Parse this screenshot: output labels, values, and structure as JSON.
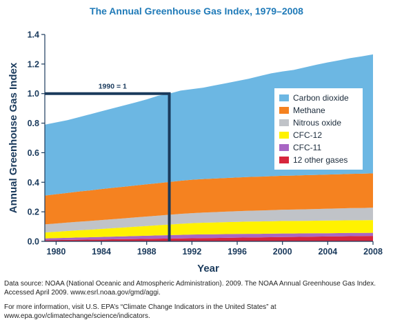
{
  "chart_data": {
    "type": "area",
    "title": "The Annual Greenhouse Gas Index, 1979–2008",
    "xlabel": "Year",
    "ylabel": "Annual Greenhouse Gas Index",
    "xlim": [
      1979,
      2008
    ],
    "ylim": [
      0,
      1.4
    ],
    "x_ticks": [
      "1980",
      "1984",
      "1988",
      "1992",
      "1996",
      "2000",
      "2004",
      "2008"
    ],
    "y_ticks": [
      "0.0",
      "0.2",
      "0.4",
      "0.6",
      "0.8",
      "1.0",
      "1.2",
      "1.4"
    ],
    "stacked": true,
    "x": [
      1979,
      1980,
      1981,
      1982,
      1983,
      1984,
      1985,
      1986,
      1987,
      1988,
      1989,
      1990,
      1991,
      1992,
      1993,
      1994,
      1995,
      1996,
      1997,
      1998,
      1999,
      2000,
      2001,
      2002,
      2003,
      2004,
      2005,
      2006,
      2007,
      2008
    ],
    "series": [
      {
        "name": "12 other gases",
        "color": "#d7263d",
        "values": [
          0.008,
          0.009,
          0.01,
          0.011,
          0.012,
          0.013,
          0.014,
          0.015,
          0.016,
          0.017,
          0.018,
          0.019,
          0.02,
          0.021,
          0.022,
          0.023,
          0.024,
          0.025,
          0.026,
          0.027,
          0.028,
          0.029,
          0.03,
          0.031,
          0.032,
          0.033,
          0.034,
          0.035,
          0.036,
          0.037
        ]
      },
      {
        "name": "CFC-11",
        "color": "#a866c4",
        "values": [
          0.012,
          0.013,
          0.014,
          0.015,
          0.016,
          0.017,
          0.018,
          0.019,
          0.02,
          0.021,
          0.022,
          0.023,
          0.024,
          0.025,
          0.025,
          0.025,
          0.025,
          0.025,
          0.025,
          0.024,
          0.024,
          0.024,
          0.023,
          0.023,
          0.023,
          0.022,
          0.022,
          0.022,
          0.021,
          0.021
        ]
      },
      {
        "name": "CFC-12",
        "color": "#fff200",
        "values": [
          0.04,
          0.043,
          0.046,
          0.049,
          0.051,
          0.054,
          0.057,
          0.06,
          0.063,
          0.066,
          0.069,
          0.072,
          0.075,
          0.077,
          0.079,
          0.08,
          0.081,
          0.082,
          0.083,
          0.084,
          0.084,
          0.085,
          0.085,
          0.085,
          0.085,
          0.086,
          0.086,
          0.086,
          0.086,
          0.086
        ]
      },
      {
        "name": "Nitrous oxide",
        "color": "#c0c3c8",
        "values": [
          0.055,
          0.056,
          0.057,
          0.058,
          0.059,
          0.06,
          0.061,
          0.062,
          0.063,
          0.064,
          0.065,
          0.066,
          0.067,
          0.068,
          0.069,
          0.07,
          0.071,
          0.072,
          0.073,
          0.074,
          0.075,
          0.076,
          0.077,
          0.078,
          0.079,
          0.08,
          0.081,
          0.082,
          0.083,
          0.084
        ]
      },
      {
        "name": "Methane",
        "color": "#f58220",
        "values": [
          0.195,
          0.198,
          0.201,
          0.204,
          0.207,
          0.21,
          0.212,
          0.214,
          0.216,
          0.218,
          0.22,
          0.222,
          0.224,
          0.226,
          0.227,
          0.227,
          0.228,
          0.228,
          0.229,
          0.229,
          0.23,
          0.23,
          0.23,
          0.231,
          0.231,
          0.231,
          0.231,
          0.232,
          0.232,
          0.232
        ]
      },
      {
        "name": "Carbon dioxide",
        "color": "#6cb7e3",
        "values": [
          0.48,
          0.486,
          0.492,
          0.503,
          0.515,
          0.526,
          0.538,
          0.55,
          0.562,
          0.575,
          0.591,
          0.598,
          0.61,
          0.613,
          0.618,
          0.63,
          0.641,
          0.653,
          0.664,
          0.681,
          0.696,
          0.706,
          0.715,
          0.73,
          0.745,
          0.759,
          0.771,
          0.783,
          0.794,
          0.805
        ]
      }
    ],
    "legend_order": [
      "Carbon dioxide",
      "Methane",
      "Nitrous oxide",
      "CFC-12",
      "CFC-11",
      "12 other gases"
    ],
    "legend_position": "right",
    "reference_line": {
      "label": "1990 = 1",
      "x": 1990,
      "y": 1.0
    }
  },
  "notes": {
    "source": "Data source: NOAA (National Oceanic and Atmospheric Administration). 2009. The NOAA Annual Greenhouse Gas Index. Accessed April 2009. www.esrl.noaa.gov/gmd/aggi.",
    "more_info": "For more information, visit U.S. EPA’s “Climate Change Indicators in the United States” at www.epa.gov/climatechange/science/indicators."
  }
}
